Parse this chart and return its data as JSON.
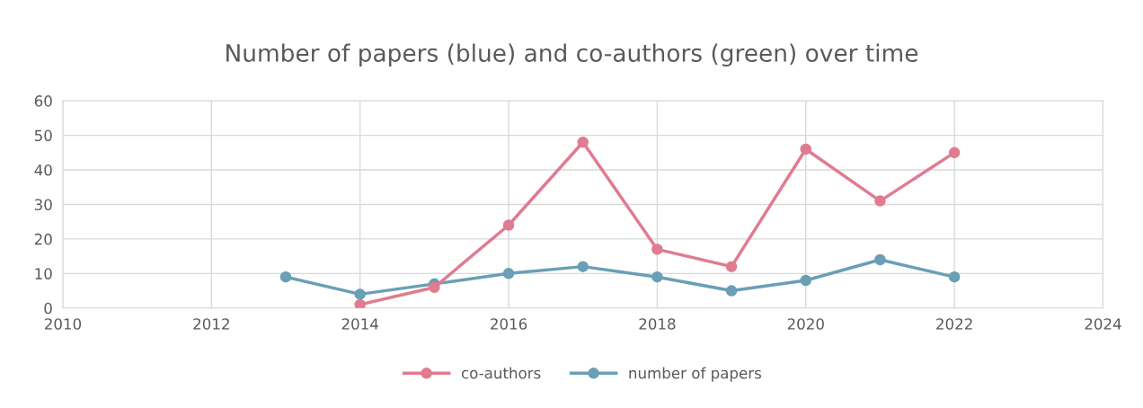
{
  "chart_data": {
    "type": "line",
    "title": "Number of papers (blue) and co-authors (green) over time",
    "xlim": [
      2010,
      2024
    ],
    "xticks": [
      2010,
      2012,
      2014,
      2016,
      2018,
      2020,
      2022,
      2024
    ],
    "ylim": [
      0,
      60
    ],
    "yticks": [
      0,
      10,
      20,
      30,
      40,
      50,
      60
    ],
    "grid": true,
    "legend": "bottom",
    "marker": "circle",
    "line_style": "solid",
    "series": [
      {
        "name": "co-authors",
        "color": "#e07b91",
        "x": [
          2014,
          2015,
          2016,
          2017,
          2018,
          2019,
          2020,
          2021,
          2022
        ],
        "values": [
          1,
          6,
          24,
          48,
          17,
          12,
          46,
          31,
          45
        ]
      },
      {
        "name": "number of papers",
        "color": "#6a9fb5",
        "x": [
          2013,
          2014,
          2015,
          2016,
          2017,
          2018,
          2019,
          2020,
          2021,
          2022
        ],
        "values": [
          9,
          4,
          7,
          10,
          12,
          9,
          5,
          8,
          14,
          9
        ]
      }
    ]
  }
}
